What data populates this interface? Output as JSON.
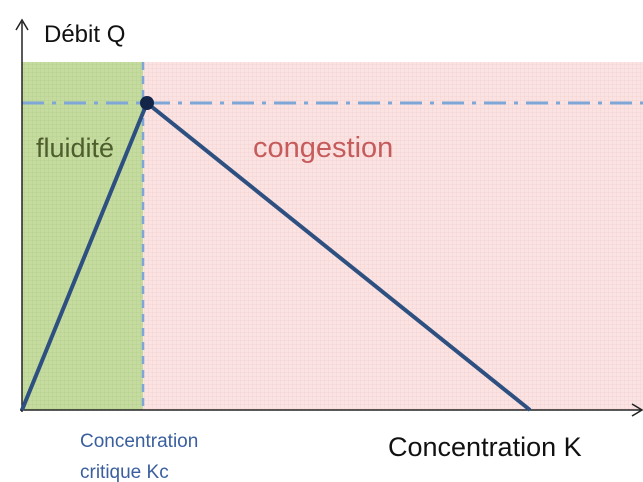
{
  "axes": {
    "y_label": "Débit Q",
    "x_label": "Concentration K"
  },
  "regions": [
    {
      "label": "fluidité"
    },
    {
      "label": "congestion"
    }
  ],
  "critical_label": [
    "Concentration",
    "critique Kc"
  ]
}
